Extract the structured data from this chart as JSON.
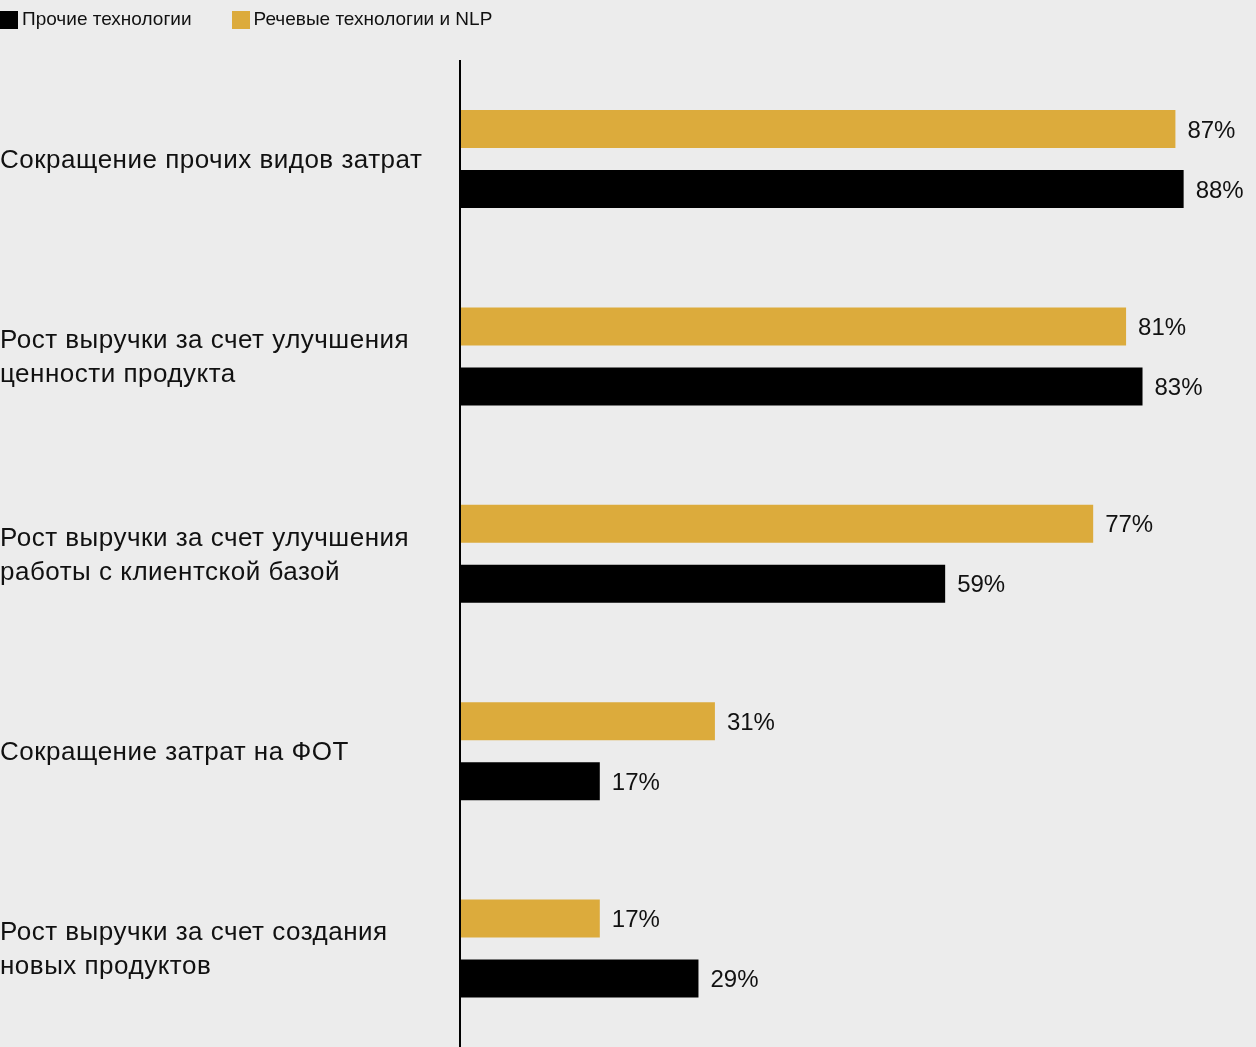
{
  "chart_data": {
    "type": "bar",
    "orientation": "horizontal",
    "legend": "top left",
    "categories": [
      "Сокращение прочих видов затрат",
      "Рост выручки за счет улучшения ценности продукта",
      "Рост выручки за счет улучшения работы с клиентской базой",
      "Сокращение затрат на ФОТ",
      "Рост выручки за счет создания новых продуктов"
    ],
    "series": [
      {
        "name": "Речевые технологии и NLP",
        "color": "#dcab3c",
        "values": [
          87,
          81,
          77,
          31,
          17
        ],
        "value_labels": [
          "87%",
          "81%",
          "77%",
          "31%",
          "17%"
        ]
      },
      {
        "name": "Прочие технологии",
        "color": "#000000",
        "values": [
          88,
          83,
          59,
          17,
          29
        ],
        "value_labels": [
          "88%",
          "83%",
          "59%",
          "17%",
          "29%"
        ]
      }
    ]
  }
}
